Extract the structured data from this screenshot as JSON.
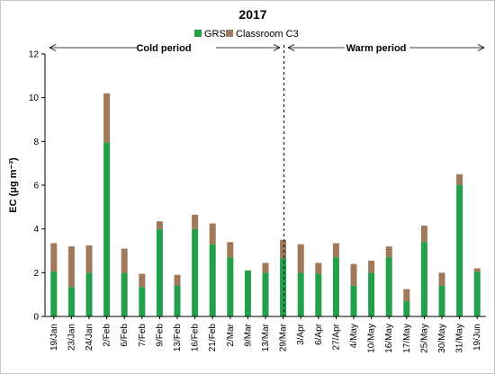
{
  "chart_data": {
    "type": "bar",
    "stacked": true,
    "title": "2017",
    "xlabel": "",
    "ylabel": "EC (μg m⁻³)",
    "ylim": [
      0,
      12
    ],
    "yticks": [
      0,
      2,
      4,
      6,
      8,
      10,
      12
    ],
    "grid": false,
    "legend_position": "top",
    "categories": [
      "19/Jan",
      "23/Jan",
      "24/Jan",
      "2/Feb",
      "6/Feb",
      "7/Feb",
      "9/Feb",
      "13/Feb",
      "16/Feb",
      "21/Feb",
      "2/Mar",
      "9/Mar",
      "13/Mar",
      "29/Mar",
      "3/Apr",
      "6/Apr",
      "27/Apr",
      "4/May",
      "10/May",
      "16/May",
      "17/May",
      "25/May",
      "30/May",
      "31/May",
      "19/Jun"
    ],
    "series": [
      {
        "name": "GRS",
        "color": "#22a04b",
        "values": [
          2.05,
          1.35,
          2.0,
          7.95,
          2.0,
          1.35,
          4.0,
          1.4,
          4.0,
          3.3,
          2.7,
          2.1,
          2.0,
          2.65,
          2.0,
          1.95,
          2.7,
          1.4,
          2.0,
          2.7,
          0.7,
          3.4,
          1.4,
          6.0,
          2.05
        ]
      },
      {
        "name": "Classroom C3",
        "color": "#a0785a",
        "values": [
          1.3,
          1.85,
          1.25,
          2.25,
          1.1,
          0.6,
          0.35,
          0.5,
          0.65,
          0.95,
          0.7,
          0.0,
          0.45,
          0.85,
          1.3,
          0.5,
          0.65,
          1.0,
          0.55,
          0.5,
          0.55,
          0.75,
          0.6,
          0.5,
          0.15
        ]
      }
    ],
    "annotations": {
      "cold_label": "Cold period",
      "warm_label": "Warm period",
      "divider_after_category": "29/Mar"
    }
  }
}
